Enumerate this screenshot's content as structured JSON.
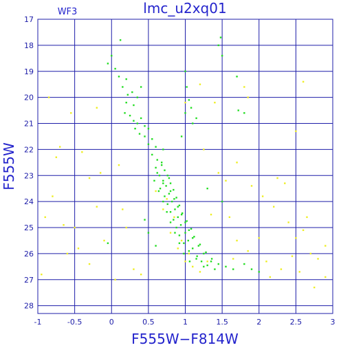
{
  "chart_data": {
    "type": "scatter",
    "title": "lmc_u2xq01",
    "corner_label": "WF3",
    "xlabel": "F555W−F814W",
    "ylabel": "F555W",
    "xlim": [
      -1,
      3
    ],
    "ylim": [
      28.3,
      17
    ],
    "y_inverted": true,
    "x_ticks": [
      "-1",
      "-0.5",
      "0",
      "0.5",
      "1",
      "1.5",
      "2",
      "2.5",
      "3"
    ],
    "x_tick_values": [
      -1,
      -0.5,
      0,
      0.5,
      1,
      1.5,
      2,
      2.5,
      3
    ],
    "y_ticks": [
      "17",
      "18",
      "19",
      "20",
      "21",
      "22",
      "23",
      "24",
      "25",
      "26",
      "27",
      "28"
    ],
    "y_tick_values": [
      17,
      18,
      19,
      20,
      21,
      22,
      23,
      24,
      25,
      26,
      27,
      28
    ],
    "grid": true,
    "colors": {
      "frame": "#1c1ca8",
      "grid": "#1c1ca8",
      "text": "#2323cc",
      "series_main": "#22dd22",
      "series_field": "#eeee22"
    },
    "series": [
      {
        "color": "#22dd22",
        "points": [
          [
            -0.05,
            18.7
          ],
          [
            0.0,
            18.4
          ],
          [
            0.05,
            18.9
          ],
          [
            0.12,
            17.8
          ],
          [
            0.1,
            19.2
          ],
          [
            0.15,
            19.6
          ],
          [
            0.2,
            19.3
          ],
          [
            0.22,
            19.9
          ],
          [
            0.28,
            19.8
          ],
          [
            0.35,
            20.0
          ],
          [
            0.4,
            19.6
          ],
          [
            0.3,
            20.3
          ],
          [
            0.2,
            20.2
          ],
          [
            0.18,
            20.6
          ],
          [
            0.25,
            20.7
          ],
          [
            0.3,
            20.9
          ],
          [
            0.35,
            21.0
          ],
          [
            0.4,
            20.8
          ],
          [
            0.45,
            21.1
          ],
          [
            0.5,
            21.2
          ],
          [
            0.32,
            21.2
          ],
          [
            0.38,
            21.4
          ],
          [
            0.45,
            21.5
          ],
          [
            0.55,
            21.6
          ],
          [
            0.5,
            21.8
          ],
          [
            0.6,
            21.9
          ],
          [
            0.7,
            22.0
          ],
          [
            0.55,
            22.2
          ],
          [
            0.62,
            22.4
          ],
          [
            0.68,
            22.5
          ],
          [
            0.6,
            22.7
          ],
          [
            0.72,
            22.8
          ],
          [
            0.65,
            23.0
          ],
          [
            0.78,
            23.1
          ],
          [
            0.7,
            23.3
          ],
          [
            0.66,
            23.5
          ],
          [
            0.8,
            23.6
          ],
          [
            0.72,
            23.8
          ],
          [
            0.85,
            23.9
          ],
          [
            0.76,
            24.1
          ],
          [
            0.9,
            24.2
          ],
          [
            0.8,
            24.4
          ],
          [
            0.95,
            24.5
          ],
          [
            0.84,
            24.7
          ],
          [
            1.0,
            24.8
          ],
          [
            0.88,
            25.0
          ],
          [
            1.05,
            25.1
          ],
          [
            0.92,
            25.3
          ],
          [
            1.1,
            25.4
          ],
          [
            0.98,
            25.6
          ],
          [
            1.18,
            25.7
          ],
          [
            1.05,
            25.9
          ],
          [
            1.25,
            26.0
          ],
          [
            1.15,
            26.2
          ],
          [
            1.35,
            26.3
          ],
          [
            1.25,
            26.5
          ],
          [
            1.45,
            26.4
          ],
          [
            1.55,
            26.5
          ],
          [
            1.65,
            26.6
          ],
          [
            1.4,
            26.6
          ],
          [
            0.62,
            22.9
          ],
          [
            0.7,
            23.2
          ],
          [
            0.74,
            23.4
          ],
          [
            0.78,
            23.7
          ],
          [
            0.82,
            24.0
          ],
          [
            0.86,
            24.3
          ],
          [
            0.9,
            24.6
          ],
          [
            0.94,
            24.9
          ],
          [
            1.0,
            25.2
          ],
          [
            1.04,
            25.5
          ],
          [
            1.1,
            25.8
          ],
          [
            1.16,
            26.1
          ],
          [
            1.22,
            26.3
          ],
          [
            1.3,
            26.45
          ],
          [
            0.68,
            22.6
          ],
          [
            0.76,
            23.0
          ],
          [
            0.8,
            23.3
          ],
          [
            0.84,
            23.55
          ],
          [
            0.88,
            23.85
          ],
          [
            0.92,
            24.15
          ],
          [
            0.96,
            24.45
          ],
          [
            1.02,
            24.75
          ],
          [
            1.08,
            25.05
          ],
          [
            1.12,
            25.35
          ],
          [
            1.2,
            25.65
          ],
          [
            1.28,
            25.95
          ],
          [
            1.36,
            26.2
          ],
          [
            0.58,
            23.2
          ],
          [
            0.64,
            23.6
          ],
          [
            0.7,
            24.0
          ],
          [
            0.75,
            24.4
          ],
          [
            0.8,
            24.8
          ],
          [
            0.86,
            25.2
          ],
          [
            0.92,
            25.6
          ],
          [
            0.98,
            26.0
          ],
          [
            1.06,
            26.3
          ],
          [
            1.0,
            19.0
          ],
          [
            1.02,
            19.6
          ],
          [
            1.05,
            20.1
          ],
          [
            1.08,
            20.4
          ],
          [
            1.0,
            20.6
          ],
          [
            0.95,
            21.5
          ],
          [
            1.1,
            21.0
          ],
          [
            1.15,
            20.8
          ],
          [
            1.5,
            18.4
          ],
          [
            1.48,
            17.7
          ],
          [
            1.45,
            18.0
          ],
          [
            1.7,
            19.2
          ],
          [
            1.72,
            20.5
          ],
          [
            1.8,
            20.6
          ],
          [
            -0.05,
            25.6
          ],
          [
            1.8,
            26.4
          ],
          [
            1.9,
            26.6
          ],
          [
            2.0,
            26.7
          ],
          [
            0.5,
            25.2
          ],
          [
            0.6,
            25.7
          ],
          [
            1.5,
            24.0
          ],
          [
            1.3,
            23.5
          ],
          [
            0.45,
            24.7
          ]
        ]
      },
      {
        "color": "#eeee22",
        "points": [
          [
            -0.9,
            24.6
          ],
          [
            -0.8,
            23.8
          ],
          [
            -0.7,
            21.9
          ],
          [
            -0.6,
            26.0
          ],
          [
            -0.5,
            25.0
          ],
          [
            -0.4,
            22.1
          ],
          [
            -0.3,
            26.4
          ],
          [
            -0.2,
            24.2
          ],
          [
            -0.1,
            25.5
          ],
          [
            0.1,
            22.6
          ],
          [
            0.2,
            25.0
          ],
          [
            0.3,
            26.6
          ],
          [
            -0.85,
            20.0
          ],
          [
            -0.55,
            20.6
          ],
          [
            -0.3,
            23.1
          ],
          [
            -0.2,
            20.4
          ],
          [
            0.05,
            27.0
          ],
          [
            -0.95,
            26.8
          ],
          [
            -0.75,
            22.3
          ],
          [
            -0.65,
            24.9
          ],
          [
            0.15,
            24.3
          ],
          [
            0.4,
            26.8
          ],
          [
            -0.45,
            25.8
          ],
          [
            -0.15,
            22.9
          ],
          [
            0.6,
            23.6
          ],
          [
            0.7,
            24.3
          ],
          [
            0.8,
            25.2
          ],
          [
            0.9,
            25.8
          ],
          [
            1.0,
            26.3
          ],
          [
            1.1,
            26.5
          ],
          [
            1.2,
            26.7
          ],
          [
            1.3,
            26.3
          ],
          [
            0.75,
            23.9
          ],
          [
            0.85,
            24.6
          ],
          [
            0.95,
            25.5
          ],
          [
            1.05,
            26.0
          ],
          [
            1.2,
            19.5
          ],
          [
            1.0,
            20.2
          ],
          [
            1.25,
            22.0
          ],
          [
            1.4,
            20.2
          ],
          [
            1.8,
            19.6
          ],
          [
            1.85,
            20.0
          ],
          [
            2.5,
            21.3
          ],
          [
            2.6,
            19.4
          ],
          [
            1.7,
            22.5
          ],
          [
            1.9,
            23.4
          ],
          [
            2.05,
            23.8
          ],
          [
            2.2,
            24.2
          ],
          [
            2.35,
            23.3
          ],
          [
            2.4,
            24.8
          ],
          [
            2.5,
            25.4
          ],
          [
            2.6,
            25.1
          ],
          [
            2.7,
            26.0
          ],
          [
            2.8,
            26.2
          ],
          [
            2.9,
            26.9
          ],
          [
            2.75,
            27.3
          ],
          [
            2.55,
            26.7
          ],
          [
            2.3,
            26.6
          ],
          [
            2.15,
            26.9
          ],
          [
            2.0,
            25.4
          ],
          [
            1.85,
            25.9
          ],
          [
            1.7,
            25.5
          ],
          [
            1.6,
            24.6
          ],
          [
            1.55,
            23.2
          ],
          [
            1.45,
            22.9
          ],
          [
            1.35,
            24.5
          ],
          [
            1.65,
            26.2
          ],
          [
            2.1,
            26.3
          ],
          [
            2.45,
            26.1
          ],
          [
            2.9,
            25.7
          ],
          [
            2.25,
            23.1
          ],
          [
            2.65,
            24.6
          ]
        ]
      }
    ]
  }
}
